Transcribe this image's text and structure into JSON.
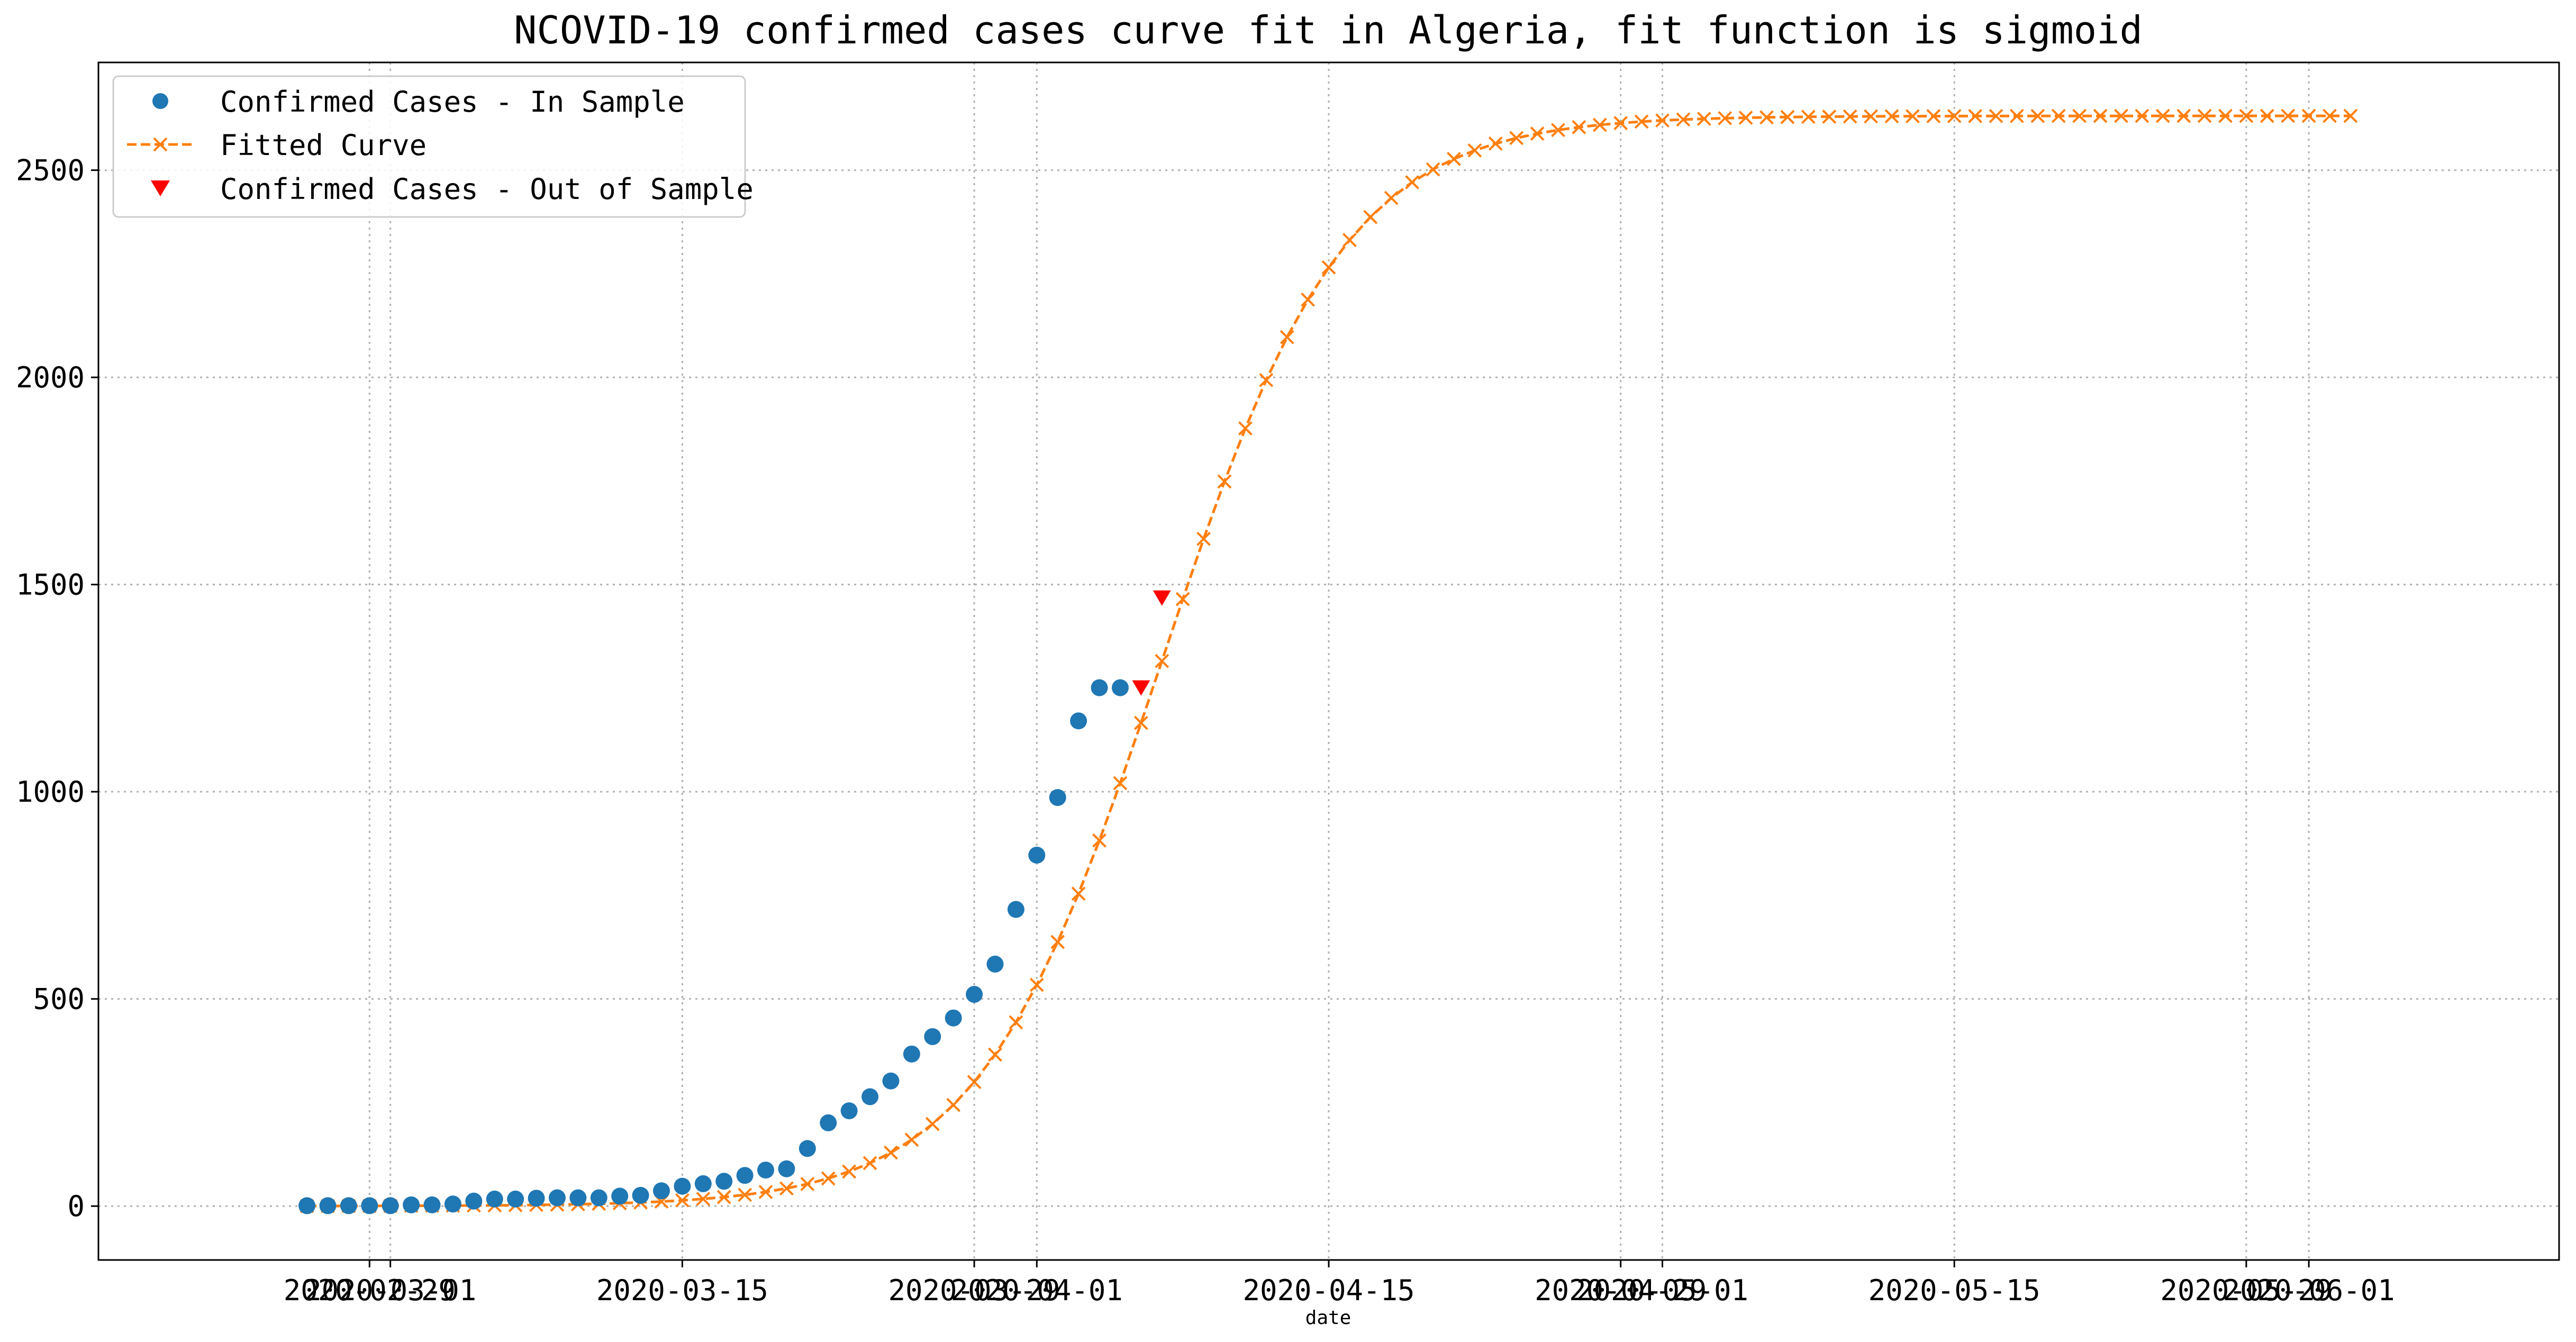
{
  "chart_data": {
    "type": "line",
    "title": "NCOVID-19 confirmed cases curve fit in Algeria, fit function is sigmoid",
    "xlabel": "date",
    "ylabel": "",
    "xlim": [
      "2020-02-16",
      "2020-06-13"
    ],
    "ylim": [
      -130,
      2760
    ],
    "grid": true,
    "legend_position": "upper-left",
    "x_ticks": [
      {
        "date": "2020-02-29",
        "label": "2020-02-29"
      },
      {
        "date": "2020-03-01",
        "label": "2020-03-01"
      },
      {
        "date": "2020-03-15",
        "label": "2020-03-15"
      },
      {
        "date": "2020-03-29",
        "label": "2020-03-29"
      },
      {
        "date": "2020-04-01",
        "label": "2020-04-01"
      },
      {
        "date": "2020-04-15",
        "label": "2020-04-15"
      },
      {
        "date": "2020-04-29",
        "label": "2020-04-29"
      },
      {
        "date": "2020-05-01",
        "label": "2020-05-01"
      },
      {
        "date": "2020-05-15",
        "label": "2020-05-15"
      },
      {
        "date": "2020-05-29",
        "label": "2020-05-29"
      },
      {
        "date": "2020-06-01",
        "label": "2020-06-01"
      }
    ],
    "y_ticks": [
      0,
      500,
      1000,
      1500,
      2000,
      2500
    ],
    "series": [
      {
        "name": "Confirmed Cases - In Sample",
        "style": "markers",
        "marker": "circle",
        "color": "#1f77b4",
        "start_date": "2020-02-26",
        "points": [
          [
            "2020-02-26",
            1
          ],
          [
            "2020-02-27",
            1
          ],
          [
            "2020-02-28",
            1
          ],
          [
            "2020-02-29",
            1
          ],
          [
            "2020-03-01",
            1
          ],
          [
            "2020-03-02",
            3
          ],
          [
            "2020-03-03",
            3
          ],
          [
            "2020-03-04",
            5
          ],
          [
            "2020-03-05",
            12
          ],
          [
            "2020-03-06",
            17
          ],
          [
            "2020-03-07",
            17
          ],
          [
            "2020-03-08",
            19
          ],
          [
            "2020-03-09",
            20
          ],
          [
            "2020-03-10",
            20
          ],
          [
            "2020-03-11",
            20
          ],
          [
            "2020-03-12",
            24
          ],
          [
            "2020-03-13",
            26
          ],
          [
            "2020-03-14",
            37
          ],
          [
            "2020-03-15",
            48
          ],
          [
            "2020-03-16",
            54
          ],
          [
            "2020-03-17",
            60
          ],
          [
            "2020-03-18",
            74
          ],
          [
            "2020-03-19",
            87
          ],
          [
            "2020-03-20",
            90
          ],
          [
            "2020-03-21",
            139
          ],
          [
            "2020-03-22",
            201
          ],
          [
            "2020-03-23",
            230
          ],
          [
            "2020-03-24",
            264
          ],
          [
            "2020-03-25",
            302
          ],
          [
            "2020-03-26",
            367
          ],
          [
            "2020-03-27",
            409
          ],
          [
            "2020-03-28",
            454
          ],
          [
            "2020-03-29",
            511
          ],
          [
            "2020-03-30",
            584
          ],
          [
            "2020-03-31",
            716
          ],
          [
            "2020-04-01",
            847
          ],
          [
            "2020-04-02",
            986
          ],
          [
            "2020-04-03",
            1171
          ],
          [
            "2020-04-04",
            1251
          ],
          [
            "2020-04-05",
            1251
          ]
        ]
      },
      {
        "name": "Fitted Curve",
        "style": "dashed-line-x-markers",
        "color": "#ff7f0e",
        "x_range": [
          "2020-02-26",
          "2020-06-03"
        ],
        "model": {
          "L": 2631,
          "k": 0.228,
          "x0": "2020-04-07"
        }
      },
      {
        "name": "Confirmed Cases - Out of Sample",
        "style": "markers",
        "marker": "triangle-down",
        "color": "#ff0000",
        "points": [
          [
            "2020-04-06",
            1251
          ],
          [
            "2020-04-07",
            1468
          ]
        ]
      }
    ]
  }
}
